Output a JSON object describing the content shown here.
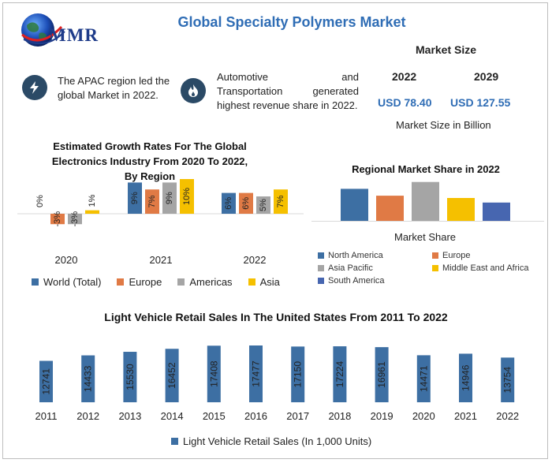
{
  "title": "Global Specialty Polymers Market",
  "logo": {
    "text": "MMR"
  },
  "insights": [
    {
      "icon": "lightning-icon",
      "text_line1": "The APAC region led the",
      "text_line2": "global Market in 2022."
    },
    {
      "icon": "flame-icon",
      "text_line1a": "Automotive",
      "text_line1b": "and",
      "text_line2a": "Transportation",
      "text_line2b": "generated",
      "text_line3": "highest revenue share in 2022."
    }
  ],
  "market_size": {
    "heading": "Market Size",
    "year_a": "2022",
    "year_b": "2029",
    "value_a": "USD 78.40",
    "value_b": "USD 127.55",
    "caption": "Market Size in Billion"
  },
  "colors": {
    "blue": "#3d6fa3",
    "orange": "#e07a45",
    "gray": "#a5a5a5",
    "yellow": "#f5c000",
    "navy": "#4766b0",
    "accent": "#2f6db5"
  },
  "chart_data": [
    {
      "id": "growth",
      "type": "bar",
      "title_lines": [
        "Estimated Growth Rates For The Global",
        "Electronics Industry From 2020 To 2022,",
        "By Region"
      ],
      "categories": [
        "2020",
        "2021",
        "2022"
      ],
      "series": [
        {
          "name": "World (Total)",
          "values": [
            0,
            9,
            6
          ],
          "labels": [
            "0%",
            "9%",
            "6%"
          ]
        },
        {
          "name": "Europe",
          "values": [
            -3,
            7,
            6
          ],
          "labels": [
            "-3%",
            "7%",
            "6%"
          ]
        },
        {
          "name": "Americas",
          "values": [
            -3,
            9,
            5
          ],
          "labels": [
            "-3%",
            "9%",
            "5%"
          ]
        },
        {
          "name": "Asia",
          "values": [
            1,
            10,
            7
          ],
          "labels": [
            "1%",
            "10%",
            "7%"
          ]
        }
      ]
    },
    {
      "id": "regional",
      "type": "bar",
      "title": "Regional Market Share in 2022",
      "xlabel": "Market Share",
      "series": [
        {
          "name": "North America",
          "value": 7.0
        },
        {
          "name": "Europe",
          "value": 5.5
        },
        {
          "name": "Asia Pacific",
          "value": 8.5
        },
        {
          "name": "Middle East and Africa",
          "value": 5.0
        },
        {
          "name": "South America",
          "value": 4.0
        }
      ]
    },
    {
      "id": "vehicle",
      "type": "bar",
      "title": "Light Vehicle Retail Sales In The United States From 2011 To 2022",
      "categories": [
        "2011",
        "2012",
        "2013",
        "2014",
        "2015",
        "2016",
        "2017",
        "2018",
        "2019",
        "2020",
        "2021",
        "2022"
      ],
      "values": [
        12741,
        14433,
        15530,
        16452,
        17408,
        17477,
        17150,
        17224,
        16961,
        14471,
        14946,
        13754
      ],
      "labels": [
        "12741",
        "14433",
        "15530",
        "16452",
        "17408",
        "17477",
        "17150",
        "17224",
        "16961",
        "14471",
        "14946",
        "13754"
      ],
      "legend": "Light Vehicle Retail Sales (In 1,000 Units)"
    }
  ]
}
